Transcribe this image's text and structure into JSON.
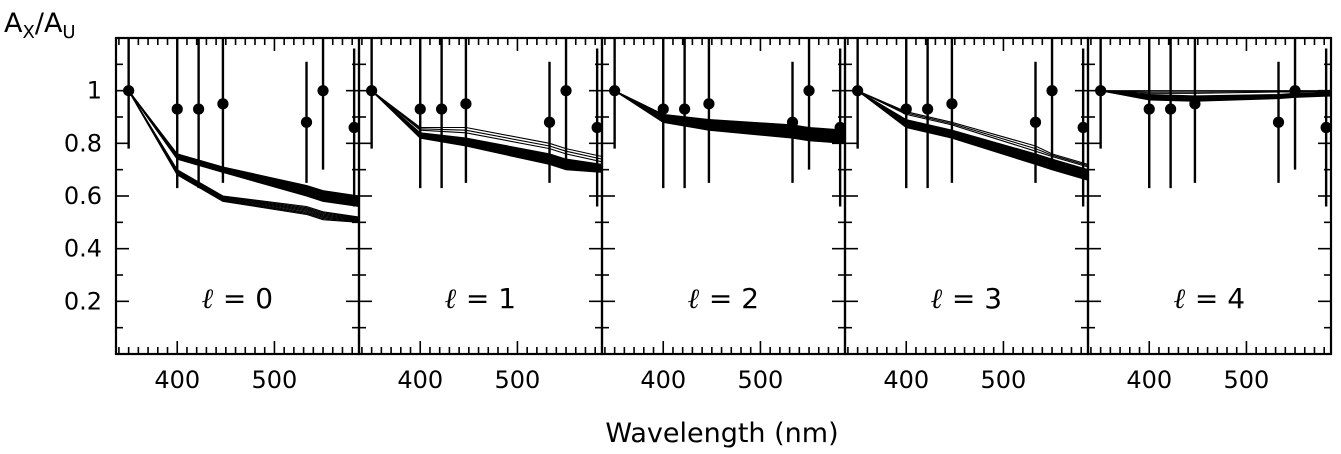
{
  "chart_data": {
    "type": "line",
    "xlabel": "Wavelength (nm)",
    "ylabel_main": "A",
    "ylabel_main_sub": "X",
    "ylabel_sep": "/",
    "ylabel_ref": "A",
    "ylabel_ref_sub": "U",
    "xlim": [
      337,
      587
    ],
    "ylim": [
      0,
      1.2
    ],
    "x_ticks": [
      400,
      500
    ],
    "y_ticks": [
      0.2,
      0.4,
      0.6,
      0.8,
      1
    ],
    "y_tick_labels": [
      "0.2",
      "0.4",
      "0.6",
      "0.8",
      "1"
    ],
    "x_tick_labels": [
      "400",
      "500"
    ],
    "grid": false,
    "legend": "none",
    "observations": {
      "x": [
        350,
        400,
        422,
        447,
        533,
        550,
        582
      ],
      "y": [
        1.0,
        0.93,
        0.93,
        0.95,
        0.88,
        1.0,
        0.86
      ],
      "err_low": [
        0.22,
        0.3,
        0.3,
        0.3,
        0.23,
        0.3,
        0.3
      ],
      "err_high": [
        0.22,
        0.3,
        0.3,
        0.3,
        0.23,
        0.3,
        0.3
      ]
    },
    "panels": [
      {
        "label_symbol": "ℓ",
        "label_eq": " = 0",
        "l": 0,
        "model_x": [
          350,
          400,
          447,
          533,
          550,
          587
        ],
        "model_bands": [
          {
            "from": [
              1.0,
              0.76,
              0.71,
              0.64,
              0.62,
              0.6
            ],
            "to": [
              1.0,
              0.74,
              0.69,
              0.6,
              0.58,
              0.56
            ],
            "count": 22
          },
          {
            "from": [
              1.0,
              0.7,
              0.6,
              0.56,
              0.54,
              0.52
            ],
            "to": [
              1.0,
              0.68,
              0.58,
              0.53,
              0.51,
              0.5
            ],
            "count": 8
          }
        ]
      },
      {
        "label_symbol": "ℓ",
        "label_eq": " = 1",
        "l": 1,
        "model_x": [
          350,
          400,
          447,
          533,
          550,
          587
        ],
        "model_bands": [
          {
            "from": [
              1.0,
              0.84,
              0.82,
              0.76,
              0.74,
              0.72
            ],
            "to": [
              1.0,
              0.82,
              0.79,
              0.72,
              0.7,
              0.69
            ],
            "count": 20
          },
          {
            "from": [
              1.0,
              0.86,
              0.86,
              0.8,
              0.78,
              0.75
            ],
            "to": [
              1.0,
              0.85,
              0.84,
              0.78,
              0.76,
              0.73
            ],
            "count": 3
          }
        ]
      },
      {
        "label_symbol": "ℓ",
        "label_eq": " = 2",
        "l": 2,
        "model_x": [
          350,
          400,
          447,
          533,
          550,
          587
        ],
        "model_bands": [
          {
            "from": [
              1.0,
              0.91,
              0.89,
              0.87,
              0.86,
              0.85
            ],
            "to": [
              1.0,
              0.88,
              0.85,
              0.82,
              0.81,
              0.8
            ],
            "count": 24
          }
        ]
      },
      {
        "label_symbol": "ℓ",
        "label_eq": " = 3",
        "l": 3,
        "model_x": [
          350,
          400,
          447,
          533,
          550,
          587
        ],
        "model_bands": [
          {
            "from": [
              1.0,
              0.89,
              0.85,
              0.76,
              0.74,
              0.7
            ],
            "to": [
              1.0,
              0.86,
              0.82,
              0.72,
              0.7,
              0.66
            ],
            "count": 18
          },
          {
            "from": [
              1.0,
              0.92,
              0.88,
              0.79,
              0.76,
              0.72
            ],
            "to": [
              1.0,
              0.91,
              0.87,
              0.77,
              0.75,
              0.71
            ],
            "count": 3
          }
        ]
      },
      {
        "label_symbol": "ℓ",
        "label_eq": " = 4",
        "l": 4,
        "model_x": [
          350,
          400,
          447,
          533,
          550,
          587
        ],
        "model_bands": [
          {
            "from": [
              1.0,
              0.985,
              0.98,
              0.985,
              0.99,
              0.995
            ],
            "to": [
              1.0,
              0.965,
              0.96,
              0.97,
              0.975,
              0.98
            ],
            "count": 10
          },
          {
            "from": [
              1.0,
              1.0,
              1.0,
              1.0,
              1.0,
              1.0
            ],
            "to": [
              1.0,
              0.99,
              0.99,
              0.995,
              0.995,
              0.998
            ],
            "count": 3
          }
        ]
      }
    ]
  }
}
